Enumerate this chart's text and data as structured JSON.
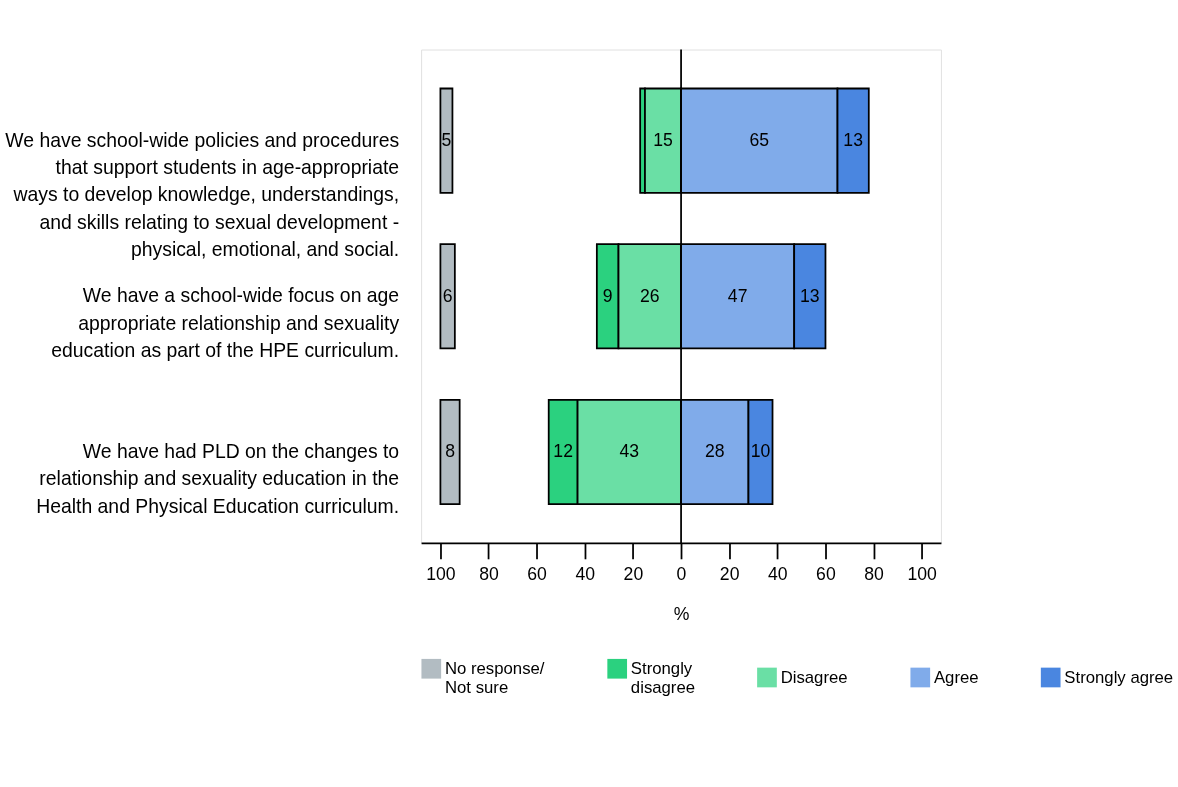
{
  "chart_data": {
    "type": "bar",
    "orientation": "horizontal",
    "xlabel": "%",
    "categories": [
      "We have school-wide policies and procedures that support students in age-appropriate ways to develop knowledge, understandings, and skills relating to sexual development - physical, emotional, and social.",
      "We have a school-wide focus on age appropriate relationship and sexuality education as part of the HPE curriculum.",
      "We have had PLD on the changes to relationship and sexuality education in the Health and Physical Education curriculum."
    ],
    "series": [
      {
        "name": "No response/ Not sure",
        "color": "#b2bcc2",
        "values": [
          5,
          6,
          8
        ],
        "base": [
          -100,
          -100,
          -100
        ],
        "value_labels": [
          "5",
          "6",
          "8"
        ]
      },
      {
        "name": "Strongly disagree",
        "color": "#2bd17f",
        "values": [
          2,
          9,
          12
        ],
        "base": [
          -17,
          -35,
          -55
        ],
        "value_labels": [
          null,
          "9",
          "12"
        ]
      },
      {
        "name": "Disagree",
        "color": "#6adfa5",
        "values": [
          15,
          26,
          43
        ],
        "base": [
          -15,
          -26,
          -43
        ],
        "value_labels": [
          "15",
          "26",
          "43"
        ]
      },
      {
        "name": "Agree",
        "color": "#80abea",
        "values": [
          65,
          47,
          28
        ],
        "base": [
          0,
          0,
          0
        ],
        "value_labels": [
          "65",
          "47",
          "28"
        ]
      },
      {
        "name": "Strongly agree",
        "color": "#4a86e0",
        "values": [
          13,
          13,
          10
        ],
        "base": [
          65,
          47,
          28
        ],
        "value_labels": [
          "13",
          "13",
          "10"
        ]
      }
    ],
    "xlim": [
      -108,
      108
    ],
    "xticks": [
      {
        "value": -100,
        "label": "100"
      },
      {
        "value": -80,
        "label": "80"
      },
      {
        "value": -60,
        "label": "60"
      },
      {
        "value": -40,
        "label": "40"
      },
      {
        "value": -20,
        "label": "20"
      },
      0,
      20,
      40,
      60,
      80,
      100
    ],
    "ref_lines": [
      {
        "axis": "x",
        "value": 0,
        "color": "#000000"
      }
    ],
    "grid": false,
    "legend": "bottom"
  }
}
